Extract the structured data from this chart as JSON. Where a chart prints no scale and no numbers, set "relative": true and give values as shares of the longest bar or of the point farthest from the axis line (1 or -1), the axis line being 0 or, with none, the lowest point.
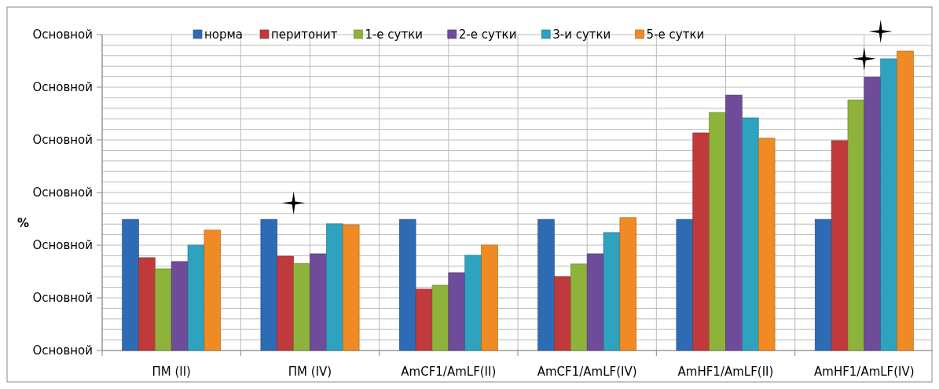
{
  "chart_data": {
    "type": "bar",
    "relative": true,
    "categories": [
      "ПМ (II)",
      "ПМ (IV)",
      "AmCF1/AmLF(II)",
      "AmCF1/AmLF(IV)",
      "AmHF1/AmLF(II)",
      "AmHF1/AmLF(IV)"
    ],
    "series": [
      {
        "name": "норма",
        "color": "#2e6bb5",
        "values": [
          0.438,
          0.438,
          0.438,
          0.438,
          0.438,
          0.438
        ]
      },
      {
        "name": "перитонит",
        "color": "#c0393b",
        "values": [
          0.31,
          0.315,
          0.205,
          0.247,
          0.727,
          0.701
        ]
      },
      {
        "name": "1-е сутки",
        "color": "#8db33a",
        "values": [
          0.273,
          0.291,
          0.218,
          0.289,
          0.795,
          0.837
        ]
      },
      {
        "name": "2-е сутки",
        "color": "#6e4c9a",
        "values": [
          0.297,
          0.323,
          0.26,
          0.323,
          0.853,
          0.913
        ]
      },
      {
        "name": "3-и сутки",
        "color": "#2ea2bf",
        "values": [
          0.352,
          0.423,
          0.318,
          0.394,
          0.777,
          0.974
        ]
      },
      {
        "name": "5-е сутки",
        "color": "#f08a24",
        "values": [
          0.402,
          0.42,
          0.352,
          0.444,
          0.709,
          1
        ]
      }
    ],
    "annotations": [
      "Основной",
      "Основной",
      "Основной",
      "Основной",
      "Основной",
      "Основной",
      "Основной",
      {
        "text": "%"
      }
    ],
    "grid": true,
    "legend": "top"
  }
}
